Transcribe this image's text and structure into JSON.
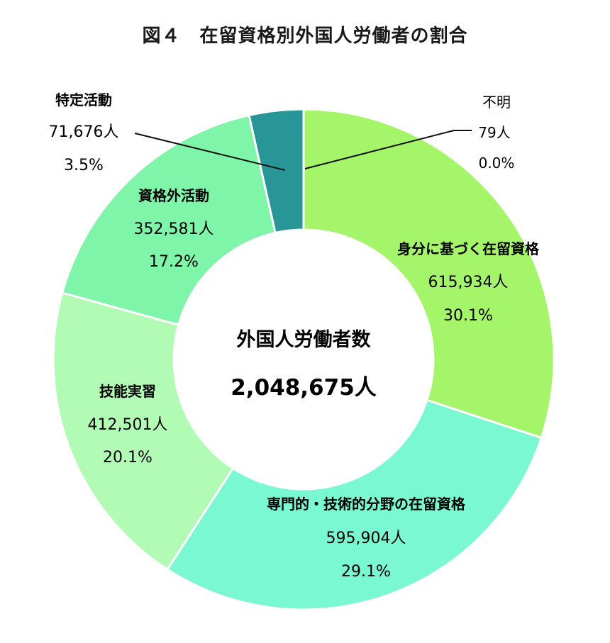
{
  "chart_data": {
    "type": "pie",
    "title": "図４　在留資格別外国人労働者の割合",
    "center": {
      "label": "外国人労働者数",
      "total": "2,048,675人"
    },
    "slices": [
      {
        "label": "不明",
        "count": "79人",
        "percent_label": "0.0%",
        "value": 79,
        "color": "#ffffff"
      },
      {
        "label": "身分に基づく在留資格",
        "count": "615,934人",
        "percent_label": "30.1%",
        "value": 615934,
        "color": "#a5f56a"
      },
      {
        "label": "専門的・技術的分野の在留資格",
        "count": "595,904人",
        "percent_label": "29.1%",
        "value": 595904,
        "color": "#7af8d1"
      },
      {
        "label": "技能実習",
        "count": "412,501人",
        "percent_label": "20.1%",
        "value": 412501,
        "color": "#b2fbb5"
      },
      {
        "label": "資格外活動",
        "count": "352,581人",
        "percent_label": "17.2%",
        "value": 352581,
        "color": "#7ef5a9"
      },
      {
        "label": "特定活動",
        "count": "71,676人",
        "percent_label": "3.5%",
        "value": 71676,
        "color": "#289696"
      }
    ]
  }
}
